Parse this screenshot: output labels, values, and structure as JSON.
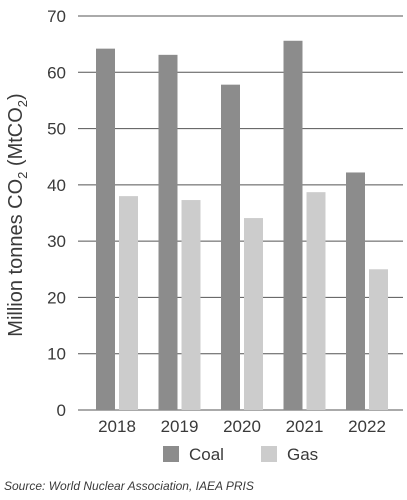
{
  "chart_data": {
    "type": "bar",
    "categories": [
      "2018",
      "2019",
      "2020",
      "2021",
      "2022"
    ],
    "series": [
      {
        "name": "Coal",
        "values": [
          64.2,
          63.1,
          57.8,
          65.6,
          42.2
        ],
        "color": "#8c8c8c"
      },
      {
        "name": "Gas",
        "values": [
          38.0,
          37.3,
          34.1,
          38.7,
          25.0
        ],
        "color": "#cccccc"
      }
    ],
    "ylabel_main": "Million tonnes CO",
    "ylabel_sub": "2",
    "ylabel_main2": " (MtCO",
    "ylabel_sub2": "2",
    "ylabel_end": ")",
    "ylim": [
      0,
      70
    ],
    "yticks": [
      "0",
      "10",
      "20",
      "30",
      "40",
      "50",
      "60",
      "70"
    ],
    "grid": true,
    "legend_position": "bottom",
    "gridline_color": "#555555"
  },
  "source": "Source: World Nuclear Association, IAEA PRIS"
}
